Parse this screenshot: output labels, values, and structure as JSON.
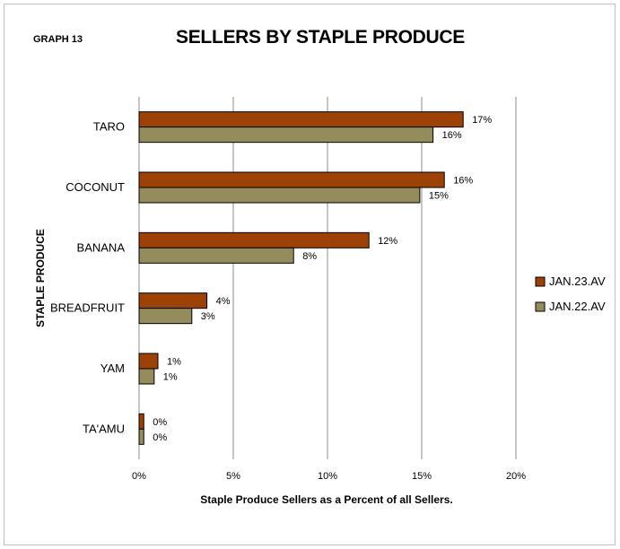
{
  "graph_label": "GRAPH 13",
  "chart_data": {
    "type": "bar",
    "orientation": "horizontal",
    "title": "SELLERS BY STAPLE PRODUCE",
    "xlabel": "Staple Produce Sellers as a Percent of all Sellers.",
    "ylabel": "STAPLE PRODUCE",
    "categories": [
      "TARO",
      "COCONUT",
      "BANANA",
      "BREADFRUIT",
      "YAM",
      "TA'AMU"
    ],
    "series": [
      {
        "name": "JAN.23.AV",
        "color": "#9c4206",
        "values": [
          17.2,
          16.2,
          12.2,
          3.6,
          1.0,
          0.25
        ],
        "labels": [
          "17%",
          "16%",
          "12%",
          "4%",
          "1%",
          "0%"
        ]
      },
      {
        "name": "JAN.22.AV",
        "color": "#948c5c",
        "values": [
          15.6,
          14.9,
          8.2,
          2.8,
          0.8,
          0.25
        ],
        "labels": [
          "16%",
          "15%",
          "8%",
          "3%",
          "1%",
          "0%"
        ]
      }
    ],
    "xlim": [
      0,
      20
    ],
    "xticks": [
      0,
      5,
      10,
      15,
      20
    ],
    "xtick_labels": [
      "0%",
      "5%",
      "10%",
      "15%",
      "20%"
    ],
    "grid": true,
    "legend_position": "right"
  }
}
